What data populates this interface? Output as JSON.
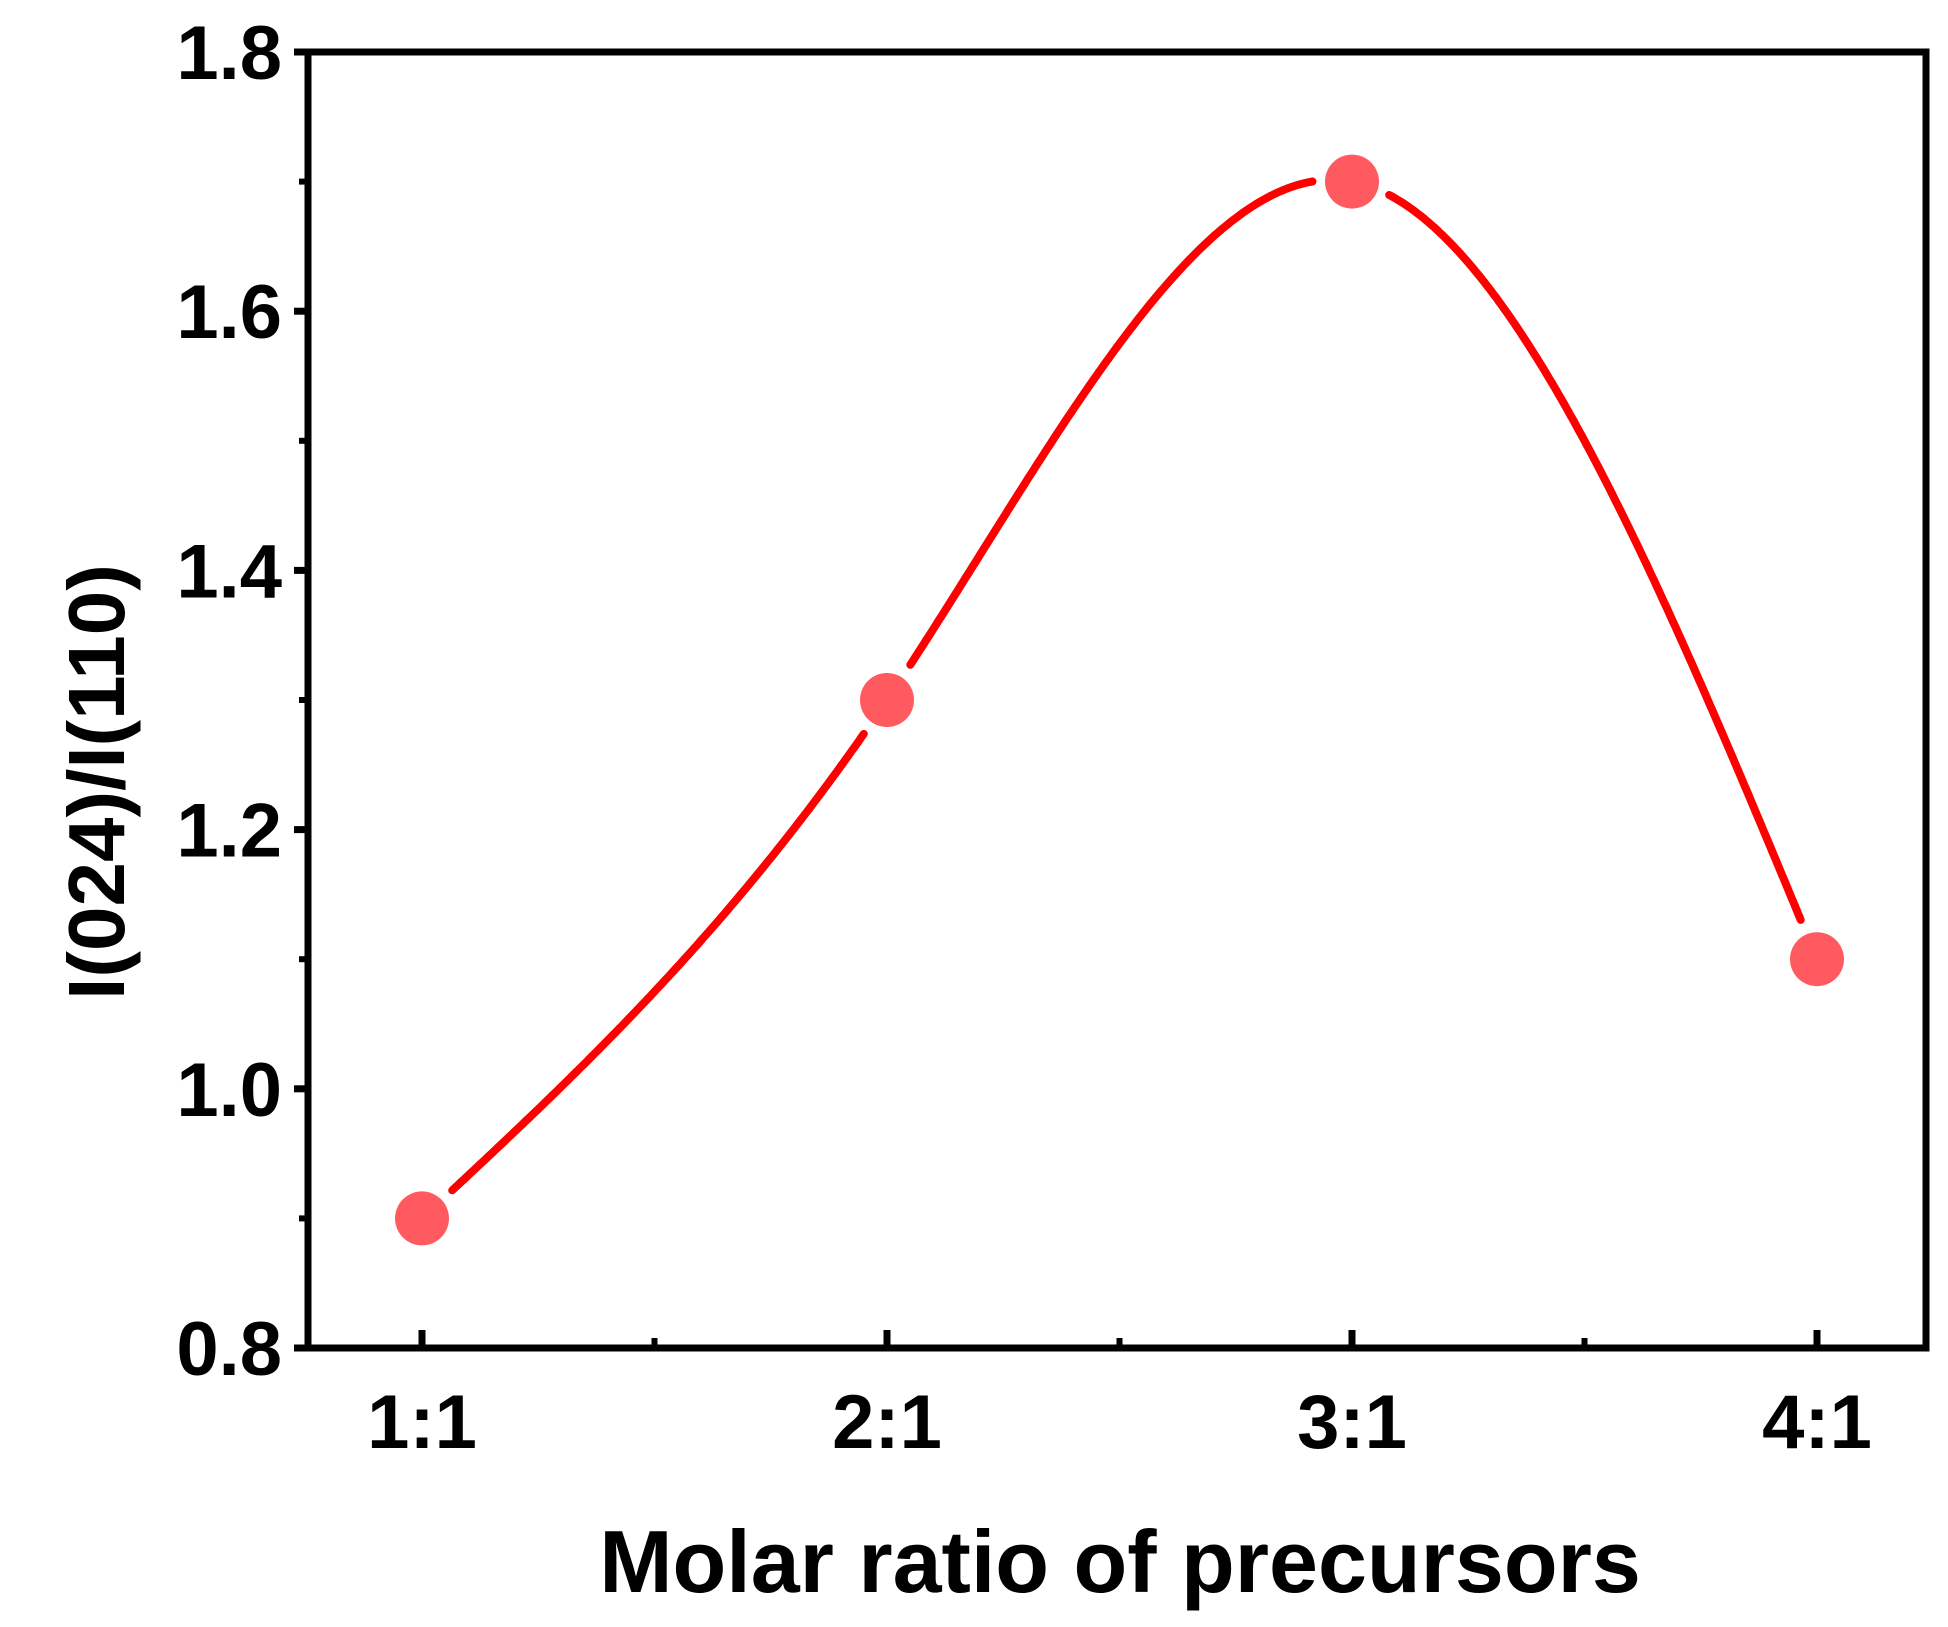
{
  "chart_data": {
    "type": "line",
    "title": "",
    "xlabel": "Molar ratio of precursors",
    "ylabel": "I(024)/I(110)",
    "categories": [
      "1:1",
      "2:1",
      "3:1",
      "4:1"
    ],
    "series": [
      {
        "values": [
          0.9,
          1.3,
          1.7,
          1.1
        ],
        "color": "#ff5a5f",
        "line_color": "#ff0000",
        "marker": "circle",
        "smooth": true
      }
    ],
    "ylim": [
      0.8,
      1.8
    ],
    "yticks": [
      "0.8",
      "1.0",
      "1.2",
      "1.4",
      "1.6",
      "1.8"
    ],
    "grid": false,
    "legend": "none"
  }
}
